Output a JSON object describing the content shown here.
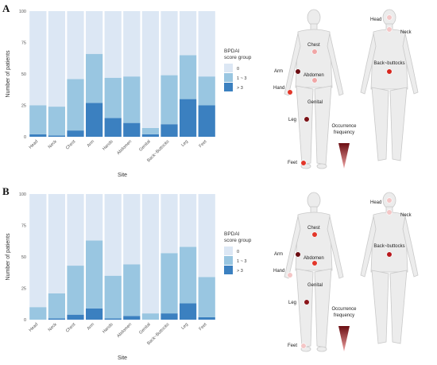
{
  "colors": {
    "s0": "#dce7f4",
    "s1": "#99c6e1",
    "s3": "#3b80c0",
    "panel_bg": "#ffffff",
    "body_fill": "#ececec",
    "body_stroke": "#c9c9c9",
    "gradient_top": "#6b0d12",
    "gradient_bottom": "#f0a4a4"
  },
  "panels": [
    {
      "letter": "A",
      "chart_data": {
        "type": "bar",
        "stacked": true,
        "categories": [
          "Head",
          "Neck",
          "Chest",
          "Arm",
          "Hands",
          "Abdomen",
          "Genital",
          "Back~Buttocks",
          "Leg",
          "Feet"
        ],
        "series": [
          {
            "name": "> 3",
            "values": [
              2,
              1,
              5,
              27,
              15,
              11,
              2,
              10,
              30,
              25
            ]
          },
          {
            "name": "1 ~ 3",
            "values": [
              23,
              23,
              41,
              39,
              32,
              37,
              5,
              39,
              35,
              23
            ]
          },
          {
            "name": "0",
            "values": [
              75,
              76,
              54,
              34,
              53,
              52,
              93,
              51,
              35,
              52
            ]
          }
        ],
        "xlabel": "Site",
        "ylabel": "Number of patients",
        "ylim": [
          0,
          100
        ],
        "yticks": [
          0,
          25,
          50,
          75,
          100
        ],
        "legend_title": [
          "BPDAI",
          "score group"
        ],
        "legend_order": [
          "0",
          "1 ~ 3",
          "> 3"
        ],
        "legend_position": "right"
      },
      "body_map": {
        "front_labels": {
          "chest": "Chest",
          "arm": "Arm",
          "abdomen": "Abdomen",
          "hand": "Hand",
          "genital": "Genital",
          "leg": "Leg",
          "feet": "Feet"
        },
        "back_labels": {
          "head": "Head",
          "neck": "Neck",
          "back": "Back~buttocks"
        },
        "dot_colors": {
          "chest": "#f0a6a6",
          "arm": "#6b0d12",
          "abdomen": "#f0a6a6",
          "hand": "#e2372a",
          "genital": "#f4c6c6",
          "leg": "#7a1116",
          "feet": "#e2372a",
          "head": "#f4c6c6",
          "neck": "#f4c6c6",
          "back": "#d7261e"
        },
        "frequency_label": [
          "Occurrence",
          "frequency"
        ]
      }
    },
    {
      "letter": "B",
      "chart_data": {
        "type": "bar",
        "stacked": true,
        "categories": [
          "Head",
          "Neck",
          "Chest",
          "Arm",
          "Hands",
          "Abdomen",
          "Genital",
          "Back~Buttocks",
          "Leg",
          "Feet"
        ],
        "series": [
          {
            "name": "> 3",
            "values": [
              0,
              1,
              4,
              9,
              1,
              3,
              0,
              5,
              13,
              2
            ]
          },
          {
            "name": "1 ~ 3",
            "values": [
              10,
              20,
              39,
              54,
              34,
              41,
              5,
              48,
              45,
              32
            ]
          },
          {
            "name": "0",
            "values": [
              90,
              79,
              57,
              37,
              65,
              56,
              95,
              47,
              42,
              66
            ]
          }
        ],
        "xlabel": "Site",
        "ylabel": "Number of patients",
        "ylim": [
          0,
          100
        ],
        "yticks": [
          0,
          25,
          50,
          75,
          100
        ],
        "legend_title": [
          "BPDAI",
          "score group"
        ],
        "legend_order": [
          "0",
          "1 ~ 3",
          "> 3"
        ],
        "legend_position": "right"
      },
      "body_map": {
        "front_labels": {
          "chest": "Chest",
          "arm": "Arm",
          "abdomen": "Abdomen",
          "hand": "Hand",
          "genital": "Genital",
          "leg": "Leg",
          "feet": "Feet"
        },
        "back_labels": {
          "head": "Head",
          "neck": "Neck",
          "back": "Back~buttocks"
        },
        "dot_colors": {
          "chest": "#e2372a",
          "arm": "#6b0d12",
          "abdomen": "#e2372a",
          "hand": "#f4c6c6",
          "genital": "#f4c6c6",
          "leg": "#8a1519",
          "feet": "#f4c6c6",
          "head": "#f4c6c6",
          "neck": "#f4c6c6",
          "back": "#b8181d"
        },
        "frequency_label": [
          "Occurrence",
          "frequency"
        ]
      }
    }
  ]
}
